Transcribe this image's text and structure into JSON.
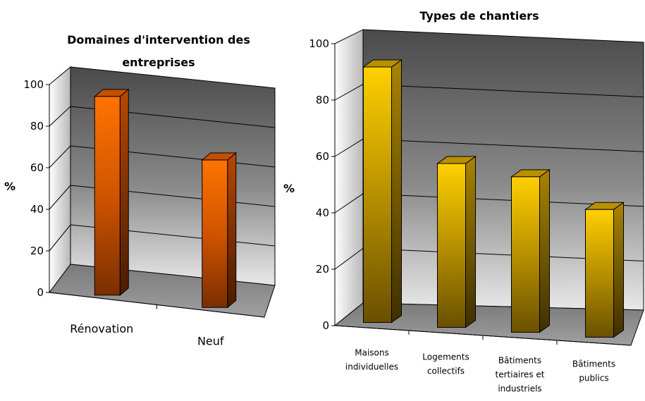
{
  "chart_data": [
    {
      "type": "bar",
      "title": "Domaines d'intervention des entreprises",
      "title_lines": [
        "Domaines d'intervention des",
        "entreprises"
      ],
      "ylabel": "%",
      "categories": [
        "Rénovation",
        "Neuf"
      ],
      "values": [
        97,
        72
      ],
      "ylim": [
        0,
        100
      ],
      "yticks": [
        "0",
        "20",
        "40",
        "60",
        "80",
        "100"
      ],
      "bar_color": "#ff6a00",
      "grid": true,
      "legend": "none"
    },
    {
      "type": "bar",
      "title": "Types de chantiers",
      "ylabel": "%",
      "categories": [
        "Maisons individuelles",
        "Logements collectifs",
        "Bâtiments tertiaires et industriels",
        "Bâtiments publics"
      ],
      "category_lines": [
        [
          "Maisons",
          "individuelles"
        ],
        [
          "Logements",
          "collectifs"
        ],
        [
          "Bâtiments",
          "tertiaires et",
          "industriels"
        ],
        [
          "Bâtiments",
          "publics"
        ]
      ],
      "values": [
        92,
        59,
        56,
        46
      ],
      "ylim": [
        0,
        100
      ],
      "yticks": [
        "0",
        "20",
        "40",
        "60",
        "80",
        "100"
      ],
      "bar_color": "#ffcc00",
      "grid": true,
      "legend": "none"
    }
  ]
}
